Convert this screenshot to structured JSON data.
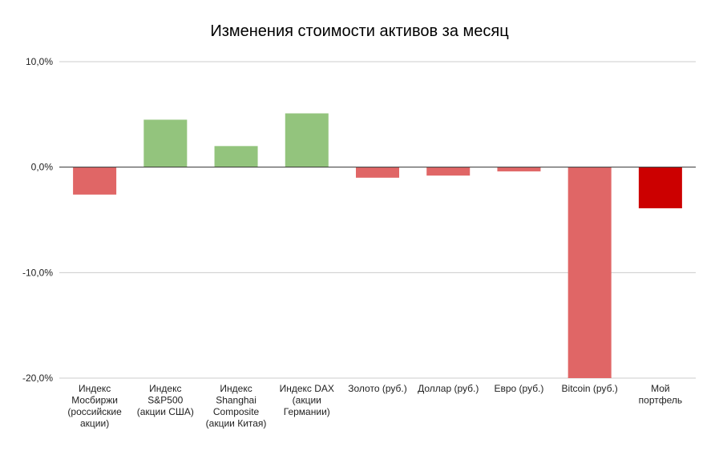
{
  "chart_data": {
    "type": "bar",
    "title": "Изменения стоимости активов за месяц",
    "xlabel": "",
    "ylabel": "",
    "ylim": [
      -20,
      10
    ],
    "yticks": [
      10,
      0,
      -10,
      -20
    ],
    "ytick_labels": [
      "10,0%",
      "0,0%",
      "-10,0%",
      "-20,0%"
    ],
    "grid": true,
    "legend": "none",
    "categories": [
      [
        "Индекс",
        "Мосбиржи",
        "(российские",
        "акции)"
      ],
      [
        "Индекс",
        "S&P500",
        "(акции США)"
      ],
      [
        "Индекс",
        "Shanghai",
        "Composite",
        "(акции Китая)"
      ],
      [
        "Индекс DAX",
        "(акции",
        "Германии)"
      ],
      [
        "Золото (руб.)"
      ],
      [
        "Доллар (руб.)"
      ],
      [
        "Евро (руб.)"
      ],
      [
        "Bitcoin (руб.)"
      ],
      [
        "Мой",
        "портфель"
      ]
    ],
    "values": [
      -2.6,
      4.5,
      2.0,
      5.1,
      -1.0,
      -0.8,
      -0.4,
      -20.0,
      -3.9
    ],
    "bar_colors": [
      "#e06666",
      "#93c47d",
      "#93c47d",
      "#93c47d",
      "#e06666",
      "#e06666",
      "#e06666",
      "#e06666",
      "#cc0000"
    ]
  }
}
